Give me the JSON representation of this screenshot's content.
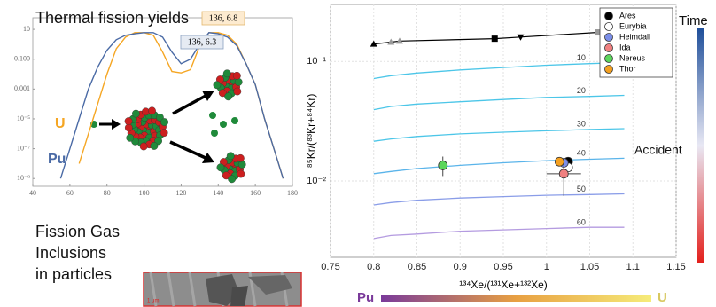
{
  "chart_data": [
    {
      "type": "line",
      "title": "Thermal fission yields",
      "x": [
        55,
        60,
        65,
        70,
        75,
        80,
        85,
        90,
        95,
        100,
        105,
        110,
        115,
        120,
        125,
        130,
        135,
        140,
        145,
        150,
        155,
        160,
        165,
        170,
        175
      ],
      "series": [
        {
          "name": "U",
          "color": "#f5a623",
          "values": [
            null,
            null,
            1e-08,
            1e-06,
            0.0001,
            0.01,
            0.5,
            3,
            6,
            6,
            4,
            0.3,
            0.015,
            0.012,
            0.02,
            0.8,
            6,
            6,
            4,
            1,
            0.05,
            0.002,
            1e-05,
            1e-07,
            1e-09
          ]
        },
        {
          "name": "Pu",
          "color": "#4a6aa5",
          "values": [
            1e-09,
            1e-07,
            1e-05,
            0.001,
            0.03,
            0.4,
            2,
            4,
            5,
            6,
            6,
            3,
            0.3,
            0.05,
            0.1,
            1,
            6,
            5,
            3,
            0.8,
            0.05,
            0.002,
            1e-05,
            1e-07,
            1e-09
          ]
        }
      ],
      "xlim": [
        40,
        180
      ],
      "xticks": [
        40,
        60,
        80,
        100,
        120,
        140,
        160,
        180
      ],
      "ylim": [
        3e-10,
        60
      ],
      "log_y": true,
      "yticks": [
        10,
        {
          "value": 0.1,
          "label": "0.100"
        },
        {
          "value": 0.001,
          "label": "0.001"
        },
        {
          "value": 1e-05,
          "label": "10⁻⁵"
        },
        {
          "value": 1e-07,
          "label": "10⁻⁷"
        },
        {
          "value": 1e-09,
          "label": "10⁻⁹"
        }
      ],
      "annotations": [
        "136, 6.8",
        "136, 6.3"
      ]
    },
    {
      "type": "scatter",
      "xlabel": "¹³⁴Xe/(¹³¹Xe+¹³²Xe)",
      "ylabel": "⁸⁵Kr/(⁸³Kr+⁸⁴Kr)",
      "xlim": [
        0.75,
        1.15
      ],
      "xticks": [
        0.75,
        0.8,
        0.85,
        0.9,
        0.95,
        1,
        1.05,
        1.1,
        1.15
      ],
      "ylim": [
        0.0023,
        0.3
      ],
      "log_y": true,
      "grid": true,
      "legend": "upper right",
      "yticks": [
        {
          "value": 0.1,
          "label": "10⁻¹"
        },
        {
          "value": 0.01,
          "label": "10⁻²"
        }
      ],
      "reference": {
        "color": "#000000",
        "x": [
          0.8,
          0.82,
          0.83,
          0.94,
          0.97,
          1.06
        ],
        "values": [
          0.14,
          0.145,
          0.148,
          0.155,
          0.16,
          0.175
        ],
        "markers": [
          "triangle",
          "triangle",
          "triangle",
          "square",
          "triangle-down",
          "square"
        ],
        "marker_colors": [
          "#000000",
          "#999999",
          "#999999",
          "#000000",
          "#000000",
          "#999999"
        ]
      },
      "curves": [
        {
          "name": "10",
          "color": "#4cc6e8",
          "x": [
            0.8,
            0.82,
            0.85,
            0.9,
            0.95,
            1,
            1.05,
            1.09
          ],
          "values": [
            0.072,
            0.076,
            0.08,
            0.085,
            0.089,
            0.093,
            0.096,
            0.098
          ]
        },
        {
          "name": "20",
          "color": "#4cc6e8",
          "x": [
            0.8,
            0.82,
            0.85,
            0.9,
            0.95,
            1,
            1.05,
            1.09
          ],
          "values": [
            0.0395,
            0.042,
            0.044,
            0.046,
            0.048,
            0.05,
            0.051,
            0.052
          ]
        },
        {
          "name": "30",
          "color": "#4cc6e8",
          "x": [
            0.8,
            0.82,
            0.85,
            0.9,
            0.95,
            1,
            1.05,
            1.09
          ],
          "values": [
            0.0215,
            0.0225,
            0.0236,
            0.0248,
            0.0256,
            0.0263,
            0.027,
            0.0274
          ]
        },
        {
          "name": "40",
          "color": "#5ab4ea",
          "x": [
            0.8,
            0.82,
            0.85,
            0.9,
            0.95,
            1,
            1.05,
            1.09
          ],
          "values": [
            0.0115,
            0.012,
            0.0127,
            0.0135,
            0.0142,
            0.0148,
            0.0152,
            0.0155
          ]
        },
        {
          "name": "50",
          "color": "#8a9de8",
          "x": [
            0.8,
            0.82,
            0.85,
            0.9,
            0.95,
            1,
            1.05,
            1.09
          ],
          "values": [
            0.0063,
            0.0066,
            0.0069,
            0.0072,
            0.0074,
            0.0076,
            0.0077,
            0.0078
          ]
        },
        {
          "name": "60",
          "color": "#b49be0",
          "x": [
            0.8,
            0.82,
            0.85,
            0.9,
            0.95,
            1,
            1.05,
            1.09
          ],
          "values": [
            0.0033,
            0.0035,
            0.0036,
            0.0038,
            0.0039,
            0.004,
            0.0041,
            0.0041
          ]
        }
      ],
      "series": [
        {
          "name": "Ares",
          "color": "#000000",
          "x": [
            1.025
          ],
          "values": [
            0.0145
          ]
        },
        {
          "name": "Eurybia",
          "color": "#ffffff",
          "x": [
            1.025
          ],
          "values": [
            0.013
          ]
        },
        {
          "name": "Heimdall",
          "color": "#7b8ee8",
          "x": [
            1.02
          ],
          "values": [
            0.0142
          ]
        },
        {
          "name": "Ida",
          "color": "#f08080",
          "x": [
            1.02
          ],
          "values": [
            0.0115
          ],
          "xerr": [
            0.02
          ],
          "yerr": [
            0.004
          ]
        },
        {
          "name": "Nereus",
          "color": "#5cd65c",
          "x": [
            0.88
          ],
          "values": [
            0.0135
          ],
          "yerr": [
            0.0025
          ]
        },
        {
          "name": "Thor",
          "color": "#f4a020",
          "x": [
            1.015
          ],
          "values": [
            0.0145
          ]
        }
      ]
    }
  ],
  "time_bar": {
    "label": "Time",
    "note": "Accident",
    "colors": [
      "#1f4f9a",
      "#e8e8f4",
      "#e3201c"
    ]
  },
  "composition_bar": {
    "start": "Pu",
    "end": "U",
    "colors": [
      "#7a3a9a",
      "#e8a042",
      "#f6ec7a"
    ]
  },
  "inclusions": {
    "lines": [
      "Fission Gas",
      "Inclusions",
      "in particles"
    ],
    "scale": "1 μm"
  }
}
